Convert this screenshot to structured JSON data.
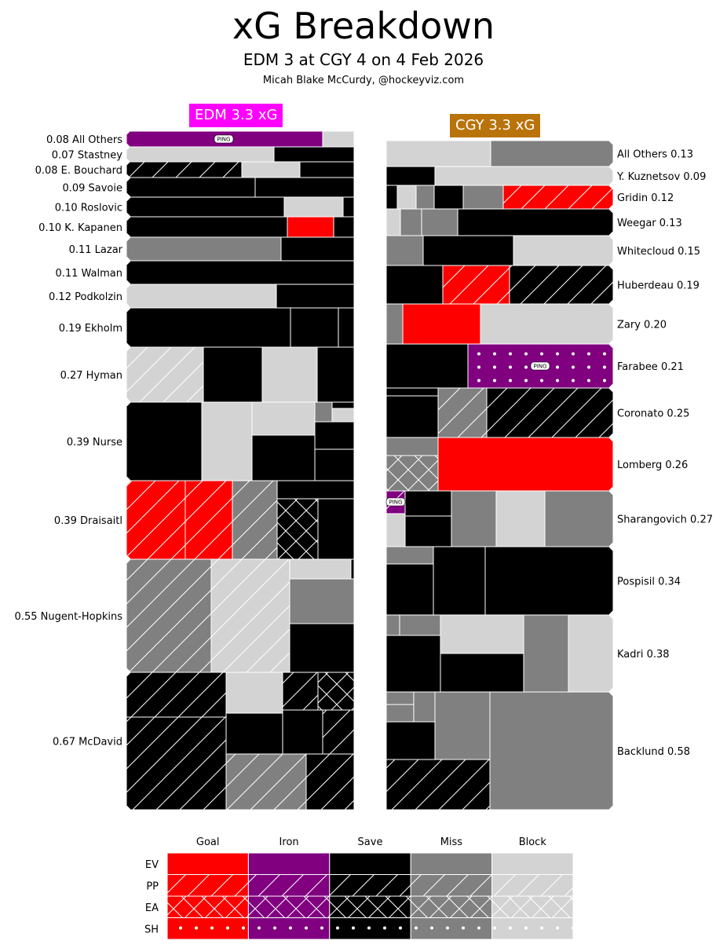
{
  "title": "xG Breakdown",
  "subtitle": "EDM 3 at CGY 4 on 4 Feb 2026",
  "credit": "Micah Blake McCurdy, @hockeyviz.com",
  "colors": {
    "goal": "#ff0000",
    "iron": "#800080",
    "save": "#000000",
    "miss": "#808080",
    "block": "#d3d3d3",
    "edm_badge": "#ff00ff",
    "cgy_badge": "#b8730a"
  },
  "chart_data": {
    "type": "treemap",
    "teams": [
      {
        "id": "edm",
        "label": "EDM 3.3 xG",
        "players": [
          {
            "name": "All Others",
            "xg": "0.08",
            "label": "0.08 All Others"
          },
          {
            "name": "Stastney",
            "xg": "0.07",
            "label": "0.07 Stastney"
          },
          {
            "name": "E. Bouchard",
            "xg": "0.08",
            "label": "0.08 E. Bouchard"
          },
          {
            "name": "Savoie",
            "xg": "0.09",
            "label": "0.09 Savoie"
          },
          {
            "name": "Roslovic",
            "xg": "0.10",
            "label": "0.10 Roslovic"
          },
          {
            "name": "K. Kapanen",
            "xg": "0.10",
            "label": "0.10 K. Kapanen"
          },
          {
            "name": "Lazar",
            "xg": "0.11",
            "label": "0.11 Lazar"
          },
          {
            "name": "Walman",
            "xg": "0.11",
            "label": "0.11 Walman"
          },
          {
            "name": "Podkolzin",
            "xg": "0.12",
            "label": "0.12 Podkolzin"
          },
          {
            "name": "Ekholm",
            "xg": "0.19",
            "label": "0.19 Ekholm"
          },
          {
            "name": "Hyman",
            "xg": "0.27",
            "label": "0.27 Hyman"
          },
          {
            "name": "Nurse",
            "xg": "0.39",
            "label": "0.39 Nurse"
          },
          {
            "name": "Draisaitl",
            "xg": "0.39",
            "label": "0.39 Draisaitl"
          },
          {
            "name": "Nugent-Hopkins",
            "xg": "0.55",
            "label": "0.55 Nugent-Hopkins"
          },
          {
            "name": "McDavid",
            "xg": "0.67",
            "label": "0.67 McDavid"
          }
        ]
      },
      {
        "id": "cgy",
        "label": "CGY 3.3 xG",
        "players": [
          {
            "name": "All Others",
            "xg": "0.13",
            "label": "All Others 0.13"
          },
          {
            "name": "Y. Kuznetsov",
            "xg": "0.09",
            "label": "Y. Kuznetsov 0.09"
          },
          {
            "name": "Gridin",
            "xg": "0.12",
            "label": "Gridin 0.12"
          },
          {
            "name": "Weegar",
            "xg": "0.13",
            "label": "Weegar 0.13"
          },
          {
            "name": "Whitecloud",
            "xg": "0.15",
            "label": "Whitecloud 0.15"
          },
          {
            "name": "Huberdeau",
            "xg": "0.19",
            "label": "Huberdeau 0.19"
          },
          {
            "name": "Zary",
            "xg": "0.20",
            "label": "Zary 0.20"
          },
          {
            "name": "Farabee",
            "xg": "0.21",
            "label": "Farabee 0.21"
          },
          {
            "name": "Coronato",
            "xg": "0.25",
            "label": "Coronato 0.25"
          },
          {
            "name": "Lomberg",
            "xg": "0.26",
            "label": "Lomberg 0.26"
          },
          {
            "name": "Sharangovich",
            "xg": "0.27",
            "label": "Sharangovich 0.27"
          },
          {
            "name": "Pospisil",
            "xg": "0.34",
            "label": "Pospisil 0.34"
          },
          {
            "name": "Kadri",
            "xg": "0.38",
            "label": "Kadri 0.38"
          },
          {
            "name": "Backlund",
            "xg": "0.58",
            "label": "Backlund 0.58"
          }
        ]
      }
    ],
    "legend": {
      "outcomes": [
        "Goal",
        "Iron",
        "Save",
        "Miss",
        "Block"
      ],
      "strengths": [
        "EV",
        "PP",
        "EA",
        "SH"
      ]
    },
    "ping_label": "PING"
  }
}
